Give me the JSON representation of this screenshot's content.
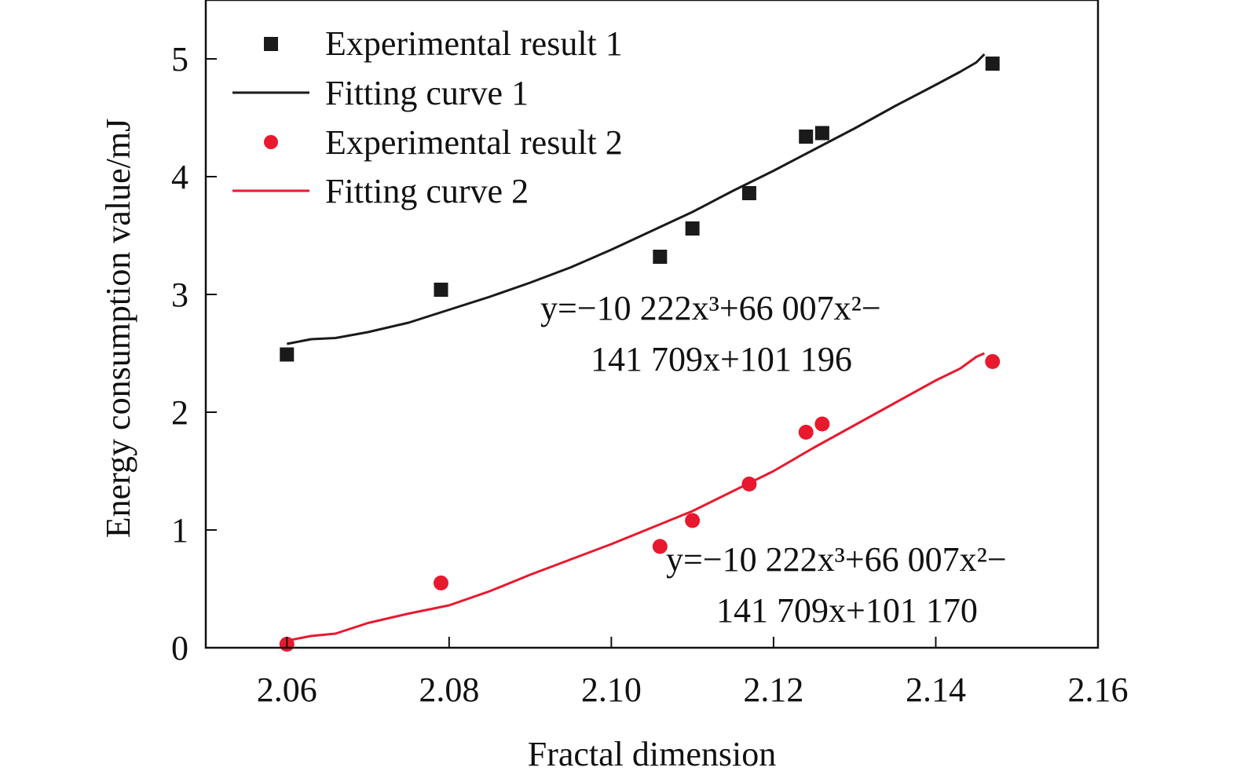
{
  "chart_data": {
    "type": "scatter",
    "xlabel": "Fractal dimension",
    "ylabel": "Energy consumption value/mJ",
    "xlim": [
      2.05,
      2.16
    ],
    "ylim": [
      0,
      5.5
    ],
    "x_ticks": [
      "2.06",
      "2.08",
      "2.10",
      "2.12",
      "2.14",
      "2.16"
    ],
    "y_ticks": [
      "0",
      "1",
      "2",
      "3",
      "4",
      "5"
    ],
    "grid": false,
    "legend_position": "top-left",
    "colors": {
      "series1": "#1a1a1a",
      "series2": "#e8192f"
    },
    "series": [
      {
        "name": "Experimental result 1",
        "kind": "scatter",
        "marker": "square",
        "color": "#1a1a1a",
        "x": [
          2.06,
          2.079,
          2.106,
          2.11,
          2.117,
          2.124,
          2.126,
          2.147
        ],
        "y": [
          2.49,
          3.04,
          3.32,
          3.56,
          3.86,
          4.34,
          4.37,
          4.96
        ]
      },
      {
        "name": "Fitting curve 1",
        "kind": "line",
        "color": "#1a1a1a",
        "x": [
          2.06,
          2.063,
          2.066,
          2.07,
          2.075,
          2.08,
          2.085,
          2.09,
          2.095,
          2.1,
          2.105,
          2.11,
          2.115,
          2.12,
          2.125,
          2.13,
          2.135,
          2.14,
          2.143,
          2.145,
          2.146
        ],
        "y": [
          2.58,
          2.62,
          2.63,
          2.68,
          2.76,
          2.87,
          2.98,
          3.1,
          3.23,
          3.38,
          3.54,
          3.7,
          3.88,
          4.05,
          4.23,
          4.41,
          4.6,
          4.78,
          4.89,
          4.97,
          5.04
        ]
      },
      {
        "name": "Experimental result 2",
        "kind": "scatter",
        "marker": "circle",
        "color": "#e8192f",
        "x": [
          2.06,
          2.079,
          2.106,
          2.11,
          2.117,
          2.124,
          2.126,
          2.147
        ],
        "y": [
          0.03,
          0.55,
          0.86,
          1.08,
          1.39,
          1.83,
          1.9,
          2.43
        ]
      },
      {
        "name": "Fitting curve 2",
        "kind": "line",
        "color": "#e8192f",
        "x": [
          2.06,
          2.063,
          2.066,
          2.07,
          2.075,
          2.08,
          2.085,
          2.09,
          2.095,
          2.1,
          2.105,
          2.11,
          2.115,
          2.12,
          2.125,
          2.13,
          2.135,
          2.14,
          2.143,
          2.145,
          2.146
        ],
        "y": [
          0.06,
          0.1,
          0.12,
          0.21,
          0.29,
          0.36,
          0.48,
          0.62,
          0.75,
          0.88,
          1.02,
          1.16,
          1.33,
          1.5,
          1.7,
          1.89,
          2.08,
          2.27,
          2.37,
          2.47,
          2.5
        ]
      }
    ],
    "annotations": [
      {
        "for": "Fitting curve 1",
        "line1": "y=−10 222x³+66 007x²−",
        "line2": "141 709x+101 196"
      },
      {
        "for": "Fitting curve 2",
        "line1": "y=−10 222x³+66 007x²−",
        "line2": "141 709x+101 170"
      }
    ]
  }
}
